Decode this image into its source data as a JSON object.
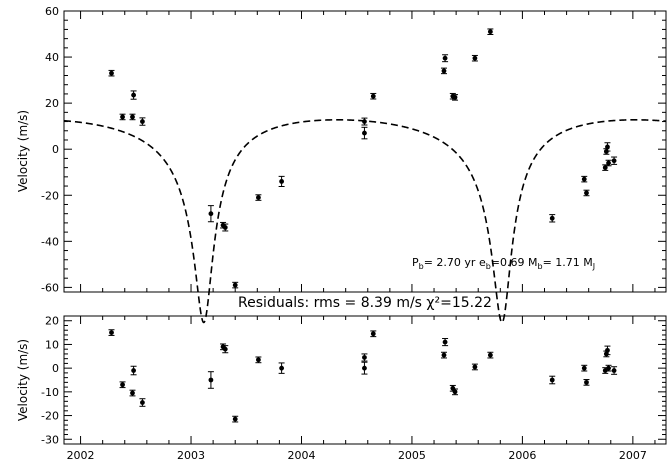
{
  "chart_data": [
    {
      "type": "scatter",
      "role": "top-panel",
      "ylabel": "Velocity (m/s)",
      "xlim": [
        2001.85,
        2007.3
      ],
      "ylim": [
        -62,
        60
      ],
      "yticks": [
        -60,
        -40,
        -20,
        0,
        20,
        40,
        60
      ],
      "xticks": [
        2002,
        2003,
        2004,
        2005,
        2006,
        2007
      ],
      "annotation": {
        "text_main": "P",
        "text_sub": "b",
        "text_rest": "= 2.70 yr e",
        "text_sub2": "b",
        "text_rest2": "=0.69 M",
        "text_sub3": "b",
        "text_rest3": "=  1.71 M",
        "text_sub4": "J"
      },
      "model": {
        "style": "dashed",
        "P": 2.7,
        "e": 0.69,
        "K": 44,
        "t_peri": 2003.12,
        "omega_deg": 185,
        "gamma": -1
      },
      "points": [
        {
          "x": 2002.28,
          "y": 33,
          "err": 1.2
        },
        {
          "x": 2002.38,
          "y": 14,
          "err": 1.2
        },
        {
          "x": 2002.47,
          "y": 14,
          "err": 1.2
        },
        {
          "x": 2002.48,
          "y": 23.5,
          "err": 1.8
        },
        {
          "x": 2002.56,
          "y": 12,
          "err": 1.6
        },
        {
          "x": 2003.18,
          "y": -28,
          "err": 3.5
        },
        {
          "x": 2003.29,
          "y": -33,
          "err": 1.2
        },
        {
          "x": 2003.31,
          "y": -34,
          "err": 1.5
        },
        {
          "x": 2003.4,
          "y": -59,
          "err": 1.2
        },
        {
          "x": 2003.61,
          "y": -21,
          "err": 1.2
        },
        {
          "x": 2003.82,
          "y": -14,
          "err": 2.2
        },
        {
          "x": 2004.57,
          "y": 7,
          "err": 2.5
        },
        {
          "x": 2004.57,
          "y": 12,
          "err": 1.5
        },
        {
          "x": 2004.65,
          "y": 23,
          "err": 1.2
        },
        {
          "x": 2005.29,
          "y": 34,
          "err": 1.2
        },
        {
          "x": 2005.3,
          "y": 39.5,
          "err": 1.5
        },
        {
          "x": 2005.37,
          "y": 23,
          "err": 1.2
        },
        {
          "x": 2005.39,
          "y": 22.5,
          "err": 1.2
        },
        {
          "x": 2005.57,
          "y": 39.5,
          "err": 1.2
        },
        {
          "x": 2005.71,
          "y": 51,
          "err": 1.2
        },
        {
          "x": 2006.27,
          "y": -30,
          "err": 1.6
        },
        {
          "x": 2006.56,
          "y": -13,
          "err": 1.2
        },
        {
          "x": 2006.58,
          "y": -19,
          "err": 1.2
        },
        {
          "x": 2006.75,
          "y": -8,
          "err": 1.2
        },
        {
          "x": 2006.76,
          "y": -1,
          "err": 1.2
        },
        {
          "x": 2006.77,
          "y": 1,
          "err": 1.8
        },
        {
          "x": 2006.78,
          "y": -6,
          "err": 1.2
        },
        {
          "x": 2006.83,
          "y": -5,
          "err": 1.6
        }
      ]
    },
    {
      "type": "scatter",
      "role": "residuals-panel",
      "title": "Residuals:  rms =  8.39 m/s  χ²=15.22",
      "ylabel": "Velocity (m/s)",
      "xlim": [
        2001.85,
        2007.3
      ],
      "ylim": [
        -32,
        22
      ],
      "yticks": [
        -30,
        -20,
        -10,
        0,
        10,
        20
      ],
      "xticks": [
        2002,
        2003,
        2004,
        2005,
        2006,
        2007
      ],
      "points": [
        {
          "x": 2002.28,
          "y": 15,
          "err": 1.2
        },
        {
          "x": 2002.38,
          "y": -7,
          "err": 1.2
        },
        {
          "x": 2002.47,
          "y": -10.5,
          "err": 1.2
        },
        {
          "x": 2002.48,
          "y": -1,
          "err": 1.8
        },
        {
          "x": 2002.56,
          "y": -14.5,
          "err": 1.6
        },
        {
          "x": 2003.18,
          "y": -5,
          "err": 3.5
        },
        {
          "x": 2003.29,
          "y": 9,
          "err": 1.2
        },
        {
          "x": 2003.31,
          "y": 8,
          "err": 1.5
        },
        {
          "x": 2003.4,
          "y": -21.5,
          "err": 1.2
        },
        {
          "x": 2003.61,
          "y": 3.5,
          "err": 1.2
        },
        {
          "x": 2003.82,
          "y": 0,
          "err": 2.2
        },
        {
          "x": 2004.57,
          "y": 0,
          "err": 2.5
        },
        {
          "x": 2004.57,
          "y": 4.5,
          "err": 1.5
        },
        {
          "x": 2004.65,
          "y": 14.5,
          "err": 1.2
        },
        {
          "x": 2005.29,
          "y": 5.5,
          "err": 1.2
        },
        {
          "x": 2005.3,
          "y": 11,
          "err": 1.5
        },
        {
          "x": 2005.37,
          "y": -8.5,
          "err": 1.2
        },
        {
          "x": 2005.39,
          "y": -10,
          "err": 1.2
        },
        {
          "x": 2005.57,
          "y": 0.5,
          "err": 1.2
        },
        {
          "x": 2005.71,
          "y": 5.5,
          "err": 1.2
        },
        {
          "x": 2006.27,
          "y": -5,
          "err": 1.6
        },
        {
          "x": 2006.56,
          "y": 0,
          "err": 1.2
        },
        {
          "x": 2006.58,
          "y": -6,
          "err": 1.2
        },
        {
          "x": 2006.75,
          "y": -1,
          "err": 1.2
        },
        {
          "x": 2006.76,
          "y": 6,
          "err": 1.2
        },
        {
          "x": 2006.77,
          "y": 7.5,
          "err": 1.8
        },
        {
          "x": 2006.78,
          "y": 0,
          "err": 1.2
        },
        {
          "x": 2006.83,
          "y": -1,
          "err": 1.6
        }
      ]
    }
  ]
}
